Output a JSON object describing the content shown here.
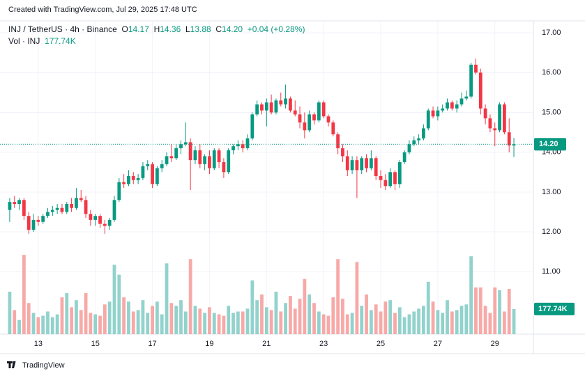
{
  "header": {
    "watermark": "Created with TradingView.com, Jul 29, 2025 17:48 UTC",
    "symbol": "INJ / TetherUS · 4h · Binance",
    "o_label": "O",
    "o": "14.17",
    "h_label": "H",
    "h": "14.36",
    "l_label": "L",
    "l": "13.88",
    "c_label": "C",
    "c": "14.20",
    "change": "+0.04 (+0.28%)",
    "vol_label": "Vol · INJ",
    "vol": "177.74K"
  },
  "footer": {
    "logo": "TradingView"
  },
  "chart_data": {
    "type": "candlestick",
    "up_color": "#089981",
    "down_color": "#f23645",
    "volume_up_color": "#92d2cc",
    "volume_down_color": "#f7a9a7",
    "xlim": [
      11.66,
      30.35
    ],
    "xticks": [
      13,
      15,
      17,
      19,
      21,
      23,
      25,
      27,
      29
    ],
    "ylim": [
      9.43,
      17.3
    ],
    "yticks": [
      {
        "value": 11,
        "label": "11.00"
      },
      {
        "value": 12,
        "label": "12.00"
      },
      {
        "value": 13,
        "label": "13.00"
      },
      {
        "value": 14,
        "label": "14.00"
      },
      {
        "value": 15,
        "label": "15.00"
      },
      {
        "value": 16,
        "label": "16.00"
      },
      {
        "value": 17,
        "label": "17.00"
      }
    ],
    "volume_lim": [
      0,
      600000
    ],
    "last_price": {
      "value": 14.2,
      "label": "14.20"
    },
    "last_volume": {
      "value": 177740,
      "label": "177.74K"
    },
    "grid": true,
    "x": [
      12,
      12.1667,
      12.3333,
      12.5,
      12.6667,
      12.8333,
      13,
      13.1667,
      13.3333,
      13.5,
      13.6667,
      13.8333,
      14,
      14.1667,
      14.3333,
      14.5,
      14.6667,
      14.8333,
      15,
      15.1667,
      15.3333,
      15.5,
      15.6667,
      15.8333,
      16,
      16.1667,
      16.3333,
      16.5,
      16.6667,
      16.8333,
      17,
      17.1667,
      17.3333,
      17.5,
      17.6667,
      17.8333,
      18,
      18.1667,
      18.3333,
      18.5,
      18.6667,
      18.8333,
      19,
      19.1667,
      19.3333,
      19.5,
      19.6667,
      19.8333,
      20,
      20.1667,
      20.3333,
      20.5,
      20.6667,
      20.8333,
      21,
      21.1667,
      21.3333,
      21.5,
      21.6667,
      21.8333,
      22,
      22.1667,
      22.3333,
      22.5,
      22.6667,
      22.8333,
      23,
      23.1667,
      23.3333,
      23.5,
      23.6667,
      23.8333,
      24,
      24.1667,
      24.3333,
      24.5,
      24.6667,
      24.8333,
      25,
      25.1667,
      25.3333,
      25.5,
      25.6667,
      25.8333,
      26,
      26.1667,
      26.3333,
      26.5,
      26.6667,
      26.8333,
      27,
      27.1667,
      27.3333,
      27.5,
      27.6667,
      27.8333,
      28,
      28.1667,
      28.3333,
      28.5,
      28.6667,
      28.8333,
      29,
      29.1667,
      29.3333,
      29.5,
      29.6667
    ],
    "ohlc": [
      [
        12.55,
        12.85,
        12.25,
        12.75
      ],
      [
        12.75,
        12.9,
        12.6,
        12.7
      ],
      [
        12.7,
        12.85,
        12.55,
        12.8
      ],
      [
        12.8,
        12.85,
        12.3,
        12.4
      ],
      [
        12.4,
        12.5,
        11.95,
        12.05
      ],
      [
        12.05,
        12.45,
        12.0,
        12.3
      ],
      [
        12.3,
        12.4,
        12.15,
        12.25
      ],
      [
        12.25,
        12.45,
        12.2,
        12.4
      ],
      [
        12.4,
        12.6,
        12.35,
        12.5
      ],
      [
        12.5,
        12.65,
        12.4,
        12.55
      ],
      [
        12.55,
        12.7,
        12.45,
        12.6
      ],
      [
        12.6,
        12.7,
        12.45,
        12.5
      ],
      [
        12.5,
        12.75,
        12.45,
        12.7
      ],
      [
        12.7,
        12.85,
        12.5,
        12.6
      ],
      [
        12.6,
        13.1,
        12.55,
        12.85
      ],
      [
        12.85,
        13.05,
        12.75,
        12.8
      ],
      [
        12.8,
        12.9,
        12.35,
        12.45
      ],
      [
        12.45,
        12.55,
        12.15,
        12.3
      ],
      [
        12.3,
        12.45,
        12.15,
        12.4
      ],
      [
        12.4,
        12.45,
        12.1,
        12.2
      ],
      [
        12.2,
        12.3,
        11.95,
        12.15
      ],
      [
        12.15,
        12.35,
        12.05,
        12.3
      ],
      [
        12.3,
        12.9,
        12.25,
        12.8
      ],
      [
        12.8,
        13.35,
        12.75,
        13.25
      ],
      [
        13.25,
        13.45,
        13.1,
        13.2
      ],
      [
        13.2,
        13.55,
        13.15,
        13.4
      ],
      [
        13.4,
        13.5,
        13.2,
        13.3
      ],
      [
        13.3,
        13.45,
        13.2,
        13.35
      ],
      [
        13.35,
        13.75,
        13.3,
        13.65
      ],
      [
        13.65,
        13.8,
        13.55,
        13.7
      ],
      [
        13.7,
        13.75,
        13.1,
        13.2
      ],
      [
        13.2,
        13.65,
        13.15,
        13.6
      ],
      [
        13.6,
        13.8,
        13.5,
        13.7
      ],
      [
        13.7,
        14.0,
        13.65,
        13.9
      ],
      [
        13.9,
        14.2,
        13.75,
        13.85
      ],
      [
        13.85,
        14.2,
        13.8,
        14.1
      ],
      [
        14.1,
        14.3,
        13.95,
        14.2
      ],
      [
        14.2,
        14.75,
        14.15,
        14.25
      ],
      [
        14.25,
        14.35,
        13.05,
        13.8
      ],
      [
        13.8,
        14.15,
        13.7,
        14.05
      ],
      [
        14.05,
        14.2,
        13.6,
        13.7
      ],
      [
        13.7,
        13.95,
        13.55,
        13.9
      ],
      [
        13.9,
        14.05,
        13.45,
        13.6
      ],
      [
        13.6,
        14.1,
        13.55,
        14.05
      ],
      [
        14.05,
        14.1,
        13.6,
        13.75
      ],
      [
        13.75,
        13.85,
        13.35,
        13.5
      ],
      [
        13.5,
        14.1,
        13.45,
        14.05
      ],
      [
        14.05,
        14.2,
        13.95,
        14.15
      ],
      [
        14.15,
        14.3,
        14.05,
        14.2
      ],
      [
        14.2,
        14.3,
        14.0,
        14.1
      ],
      [
        14.1,
        14.45,
        14.05,
        14.35
      ],
      [
        14.35,
        15.0,
        14.3,
        14.95
      ],
      [
        14.95,
        15.3,
        14.9,
        15.2
      ],
      [
        15.2,
        15.25,
        14.95,
        15.05
      ],
      [
        15.05,
        15.35,
        14.65,
        15.25
      ],
      [
        15.25,
        15.45,
        14.95,
        15.0
      ],
      [
        15.0,
        15.35,
        14.95,
        15.3
      ],
      [
        15.3,
        15.5,
        15.15,
        15.2
      ],
      [
        15.2,
        15.7,
        15.1,
        15.35
      ],
      [
        15.35,
        15.4,
        15.0,
        15.05
      ],
      [
        15.05,
        15.3,
        14.9,
        14.95
      ],
      [
        14.95,
        15.15,
        14.6,
        14.75
      ],
      [
        14.75,
        15.0,
        14.35,
        14.55
      ],
      [
        14.55,
        15.05,
        14.5,
        14.95
      ],
      [
        14.95,
        15.0,
        14.7,
        14.8
      ],
      [
        14.8,
        15.3,
        14.75,
        15.25
      ],
      [
        15.25,
        15.3,
        14.85,
        14.9
      ],
      [
        14.9,
        14.95,
        14.65,
        14.75
      ],
      [
        14.75,
        14.8,
        14.4,
        14.45
      ],
      [
        14.45,
        14.5,
        13.95,
        14.1
      ],
      [
        14.1,
        14.2,
        13.75,
        13.9
      ],
      [
        13.9,
        14.05,
        13.4,
        13.55
      ],
      [
        13.55,
        13.9,
        13.45,
        13.8
      ],
      [
        13.8,
        13.9,
        12.85,
        13.55
      ],
      [
        13.55,
        13.9,
        13.45,
        13.85
      ],
      [
        13.85,
        13.95,
        13.5,
        13.6
      ],
      [
        13.6,
        14.05,
        13.55,
        13.85
      ],
      [
        13.85,
        13.9,
        13.3,
        13.4
      ],
      [
        13.4,
        13.55,
        13.1,
        13.3
      ],
      [
        13.3,
        13.45,
        13.05,
        13.15
      ],
      [
        13.15,
        13.6,
        13.1,
        13.5
      ],
      [
        13.5,
        13.55,
        13.05,
        13.2
      ],
      [
        13.2,
        13.8,
        13.1,
        13.75
      ],
      [
        13.75,
        14.05,
        13.7,
        14.0
      ],
      [
        14.0,
        14.3,
        13.95,
        14.2
      ],
      [
        14.2,
        14.4,
        14.15,
        14.3
      ],
      [
        14.3,
        14.45,
        14.2,
        14.35
      ],
      [
        14.35,
        14.7,
        14.3,
        14.6
      ],
      [
        14.6,
        15.1,
        14.55,
        15.05
      ],
      [
        15.05,
        15.15,
        14.85,
        14.9
      ],
      [
        14.9,
        15.15,
        14.8,
        15.05
      ],
      [
        15.05,
        15.2,
        15.0,
        15.1
      ],
      [
        15.1,
        15.35,
        15.05,
        15.25
      ],
      [
        15.25,
        15.3,
        15.05,
        15.1
      ],
      [
        15.1,
        15.3,
        15.0,
        15.2
      ],
      [
        15.2,
        15.5,
        15.15,
        15.35
      ],
      [
        15.35,
        15.55,
        15.3,
        15.4
      ],
      [
        15.4,
        16.25,
        15.35,
        16.2
      ],
      [
        16.2,
        16.35,
        15.95,
        16.0
      ],
      [
        16.0,
        16.1,
        14.95,
        15.1
      ],
      [
        15.1,
        15.2,
        14.7,
        14.85
      ],
      [
        14.85,
        14.95,
        14.5,
        14.6
      ],
      [
        14.6,
        14.75,
        14.15,
        14.55
      ],
      [
        14.55,
        15.25,
        14.5,
        15.2
      ],
      [
        15.2,
        15.25,
        14.45,
        14.5
      ],
      [
        14.5,
        14.85,
        14.0,
        14.17
      ],
      [
        14.17,
        14.36,
        13.88,
        14.2
      ]
    ],
    "volume": [
      300000,
      170000,
      100000,
      560000,
      220000,
      150000,
      120000,
      130000,
      160000,
      120000,
      140000,
      260000,
      290000,
      190000,
      240000,
      170000,
      290000,
      150000,
      140000,
      130000,
      210000,
      230000,
      490000,
      420000,
      260000,
      230000,
      160000,
      170000,
      240000,
      150000,
      200000,
      230000,
      140000,
      500000,
      220000,
      200000,
      240000,
      160000,
      530000,
      200000,
      180000,
      150000,
      190000,
      150000,
      140000,
      130000,
      200000,
      150000,
      160000,
      160000,
      180000,
      380000,
      240000,
      280000,
      190000,
      170000,
      300000,
      160000,
      220000,
      270000,
      180000,
      250000,
      390000,
      280000,
      220000,
      160000,
      140000,
      130000,
      260000,
      530000,
      250000,
      140000,
      150000,
      510000,
      200000,
      280000,
      170000,
      210000,
      160000,
      230000,
      240000,
      150000,
      190000,
      120000,
      140000,
      160000,
      180000,
      200000,
      370000,
      230000,
      170000,
      150000,
      240000,
      160000,
      170000,
      200000,
      210000,
      550000,
      330000,
      330000,
      200000,
      150000,
      330000,
      310000,
      160000,
      320000,
      177740
    ]
  }
}
